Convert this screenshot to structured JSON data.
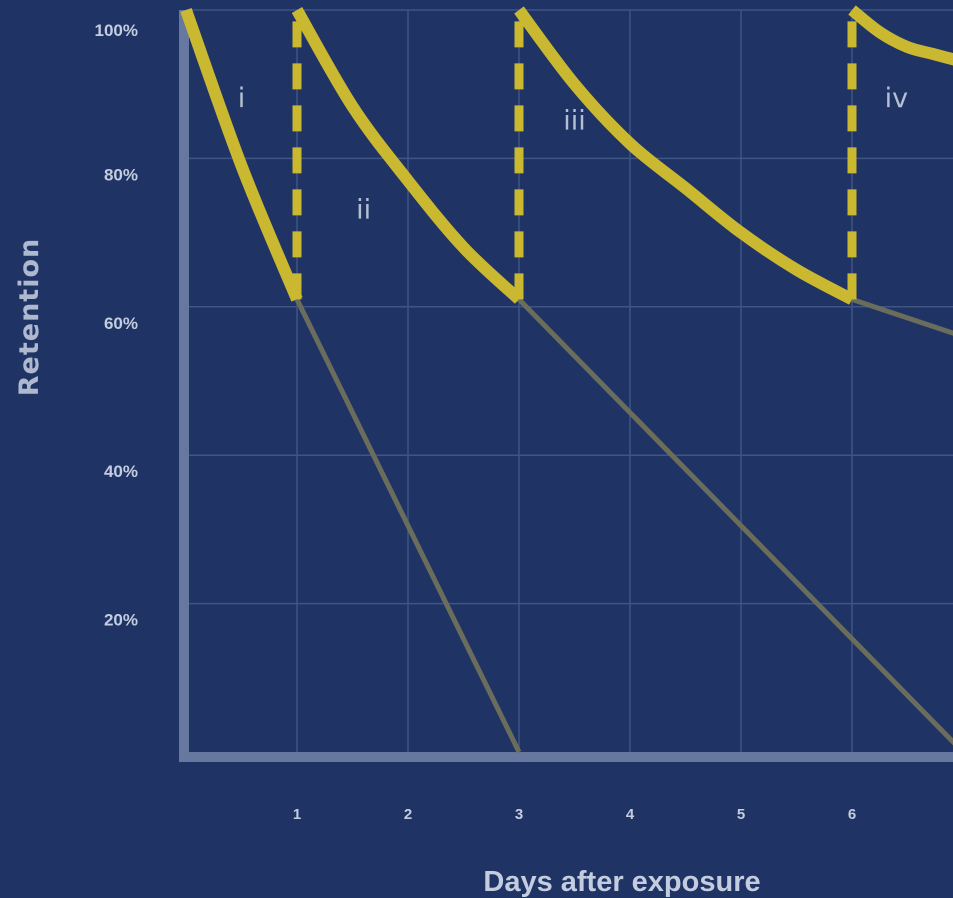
{
  "chart_data": {
    "type": "line",
    "title": "",
    "xlabel": "Days after exposure",
    "ylabel": "Retention",
    "xlim": [
      0,
      7
    ],
    "ylim": [
      0,
      100
    ],
    "x_ticks": [
      1,
      2,
      3,
      4,
      5,
      6
    ],
    "x_tick_labels": [
      "1",
      "2",
      "3",
      "4",
      "5",
      "6"
    ],
    "y_ticks": [
      20,
      40,
      60,
      80,
      100
    ],
    "y_tick_labels": [
      "20%",
      "40%",
      "60%",
      "80%",
      "100%"
    ],
    "grid": true,
    "series": [
      {
        "name": "i",
        "style": "active",
        "x": [
          0,
          0.5,
          1
        ],
        "y": [
          100,
          79,
          61
        ]
      },
      {
        "name": "ii",
        "style": "active",
        "x": [
          1,
          1.5,
          2,
          2.5,
          3
        ],
        "y": [
          100,
          87,
          77,
          68,
          61
        ]
      },
      {
        "name": "iii",
        "style": "active",
        "x": [
          3,
          3.5,
          4,
          4.5,
          5,
          5.5,
          6
        ],
        "y": [
          100,
          90,
          82,
          76,
          70,
          65,
          61
        ]
      },
      {
        "name": "iv",
        "style": "active",
        "x": [
          6,
          6.25,
          6.5,
          6.75,
          7
        ],
        "y": [
          100,
          97,
          95,
          94,
          93
        ]
      },
      {
        "style": "decay",
        "x": [
          1,
          3
        ],
        "y": [
          61,
          0
        ]
      },
      {
        "style": "decay",
        "x": [
          3,
          7
        ],
        "y": [
          61,
          0
        ]
      },
      {
        "style": "decay",
        "x": [
          6,
          7
        ],
        "y": [
          61,
          56
        ]
      },
      {
        "style": "review",
        "x": [
          1,
          1
        ],
        "y": [
          61,
          100
        ]
      },
      {
        "style": "review",
        "x": [
          3,
          3
        ],
        "y": [
          61,
          100
        ]
      },
      {
        "style": "review",
        "x": [
          6,
          6
        ],
        "y": [
          61,
          100
        ]
      }
    ],
    "annotations": [
      {
        "text": "i",
        "x": 0.5,
        "y": 88
      },
      {
        "text": "ii",
        "x": 1.6,
        "y": 73
      },
      {
        "text": "iii",
        "x": 3.5,
        "y": 85
      },
      {
        "text": "iv",
        "x": 6.4,
        "y": 88
      }
    ],
    "colors": {
      "background": "#1f3464",
      "active": "#c9b830",
      "decay": "#6b6d5c",
      "grid": "#3f5584",
      "axis": "#6677a0"
    }
  }
}
